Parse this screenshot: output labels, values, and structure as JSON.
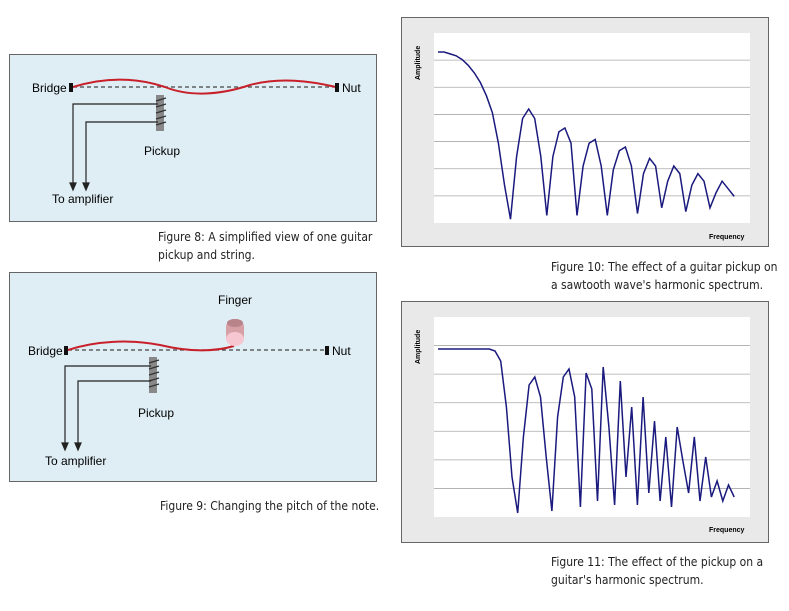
{
  "figure8": {
    "labels": {
      "bridge": "Bridge",
      "nut": "Nut",
      "pickup": "Pickup",
      "amp": "To amplifier"
    },
    "caption_line1": "Figure 8: A simplified view of one guitar",
    "caption_line2": "pickup and string."
  },
  "figure9": {
    "labels": {
      "bridge": "Bridge",
      "nut": "Nut",
      "pickup": "Pickup",
      "amp": "To amplifier",
      "finger": "Finger"
    },
    "caption": "Figure 9: Changing the pitch of the note."
  },
  "chart_data": [
    {
      "type": "line",
      "title": "",
      "xlabel": "Frequency",
      "ylabel": "Amplitude",
      "grid": true,
      "caption_line1": "Figure 10: The effect of a guitar pickup on",
      "caption_line2": "a sawtooth wave's harmonic spectrum.",
      "series": [
        {
          "values": [
            0.9,
            0.9,
            0.89,
            0.88,
            0.86,
            0.83,
            0.79,
            0.74,
            0.67,
            0.58,
            0.42,
            0.2,
            0.02,
            0.35,
            0.55,
            0.6,
            0.55,
            0.35,
            0.04,
            0.35,
            0.48,
            0.5,
            0.42,
            0.04,
            0.3,
            0.42,
            0.44,
            0.3,
            0.04,
            0.28,
            0.38,
            0.4,
            0.3,
            0.05,
            0.26,
            0.34,
            0.3,
            0.08,
            0.22,
            0.3,
            0.26,
            0.06,
            0.2,
            0.26,
            0.22,
            0.08,
            0.16,
            0.22,
            0.18,
            0.14
          ]
        }
      ]
    },
    {
      "type": "line",
      "title": "",
      "xlabel": "Frequency",
      "ylabel": "Amplitude",
      "grid": true,
      "caption_line1": "Figure 11: The effect of the pickup on a",
      "caption_line2": "guitar's harmonic spectrum.",
      "series": [
        {
          "values": [
            0.84,
            0.84,
            0.84,
            0.84,
            0.84,
            0.84,
            0.84,
            0.84,
            0.84,
            0.84,
            0.83,
            0.78,
            0.55,
            0.2,
            0.02,
            0.4,
            0.66,
            0.7,
            0.6,
            0.3,
            0.03,
            0.5,
            0.7,
            0.74,
            0.6,
            0.05,
            0.72,
            0.64,
            0.08,
            0.75,
            0.45,
            0.06,
            0.68,
            0.2,
            0.55,
            0.06,
            0.6,
            0.12,
            0.48,
            0.08,
            0.4,
            0.05,
            0.45,
            0.28,
            0.12,
            0.4,
            0.08,
            0.3,
            0.1,
            0.18,
            0.08,
            0.16,
            0.1
          ]
        }
      ]
    }
  ]
}
